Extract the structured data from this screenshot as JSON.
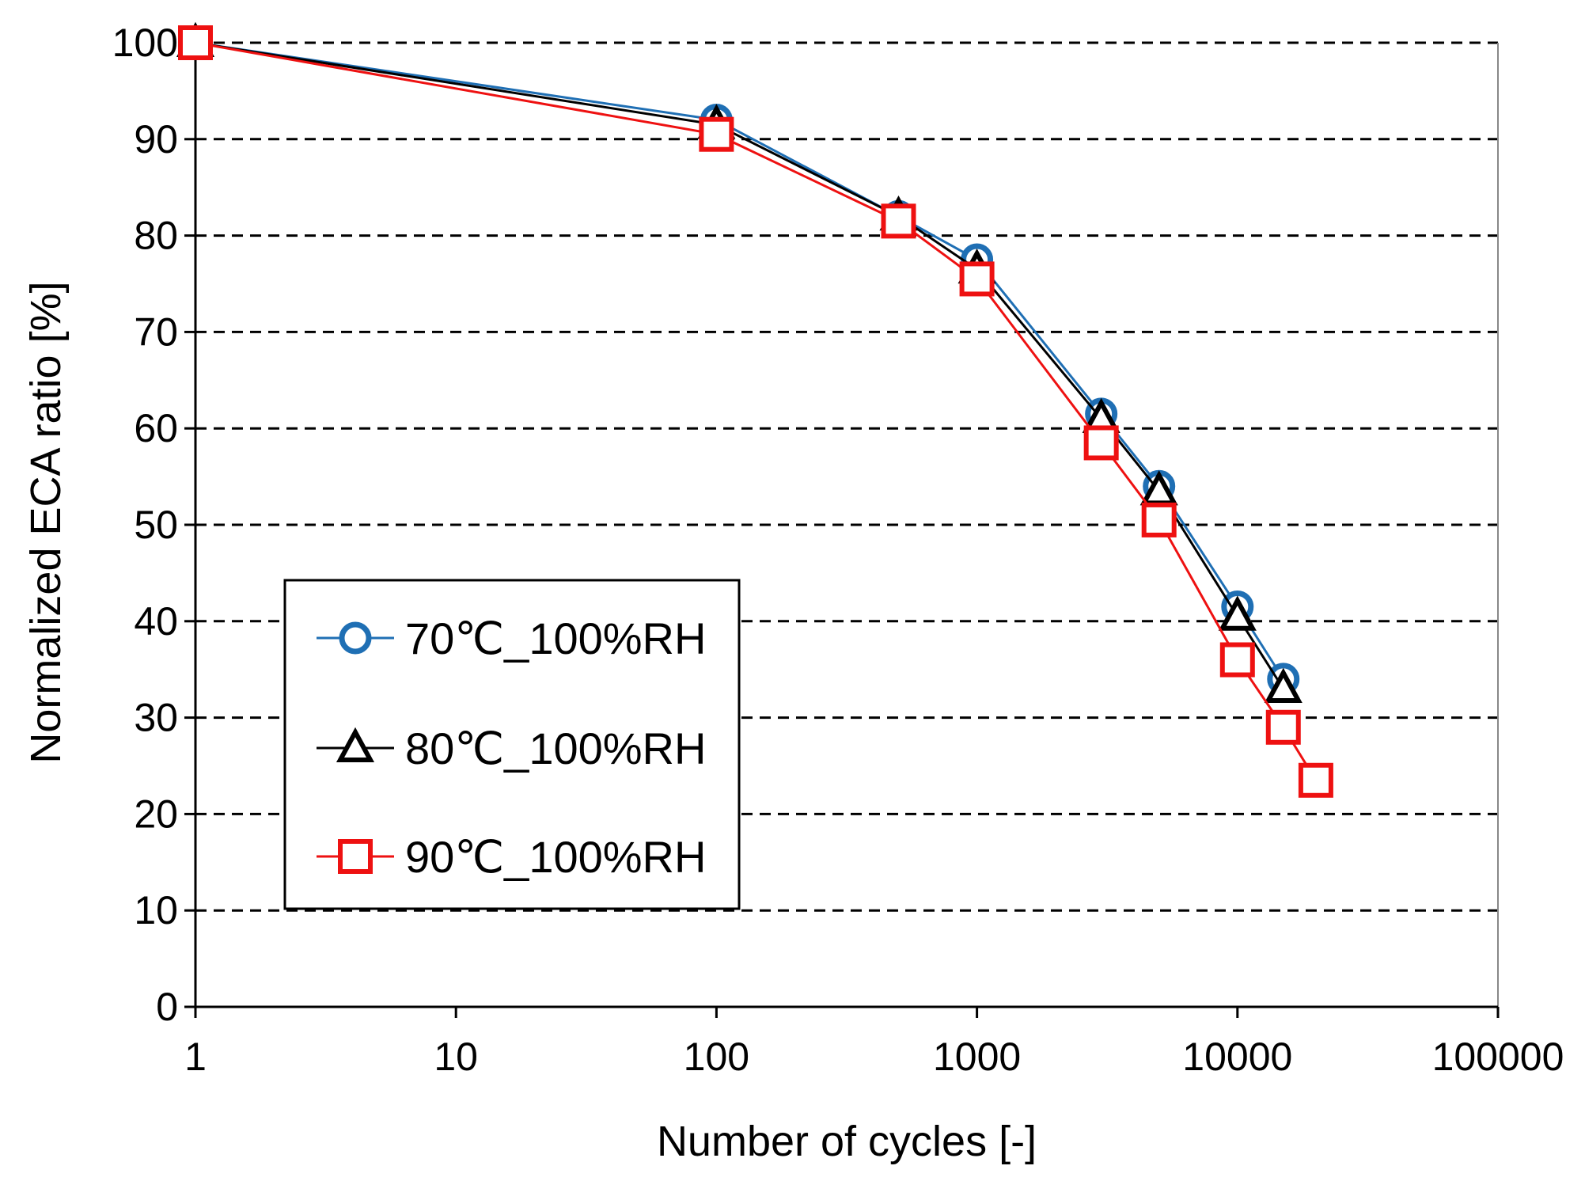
{
  "chart_data": {
    "type": "line",
    "title": "",
    "xlabel": "Number of cycles [-]",
    "ylabel": "Normalized ECA ratio [%]",
    "xscale": "log",
    "xlim": [
      1,
      100000
    ],
    "ylim": [
      0,
      100
    ],
    "x_ticks": [
      1,
      10,
      100,
      1000,
      10000,
      100000
    ],
    "x_tick_labels": [
      "1",
      "10",
      "100",
      "1000",
      "10000",
      "100000"
    ],
    "y_ticks": [
      0,
      10,
      20,
      30,
      40,
      50,
      60,
      70,
      80,
      90,
      100
    ],
    "y_tick_labels": [
      "0",
      "10",
      "20",
      "30",
      "40",
      "50",
      "60",
      "70",
      "80",
      "90",
      "100"
    ],
    "grid": "horizontal dashed",
    "legend_position": "lower-left",
    "series": [
      {
        "name": "70℃_100%RH",
        "color": "#1f6fb4",
        "marker": "circle",
        "x": [
          1,
          100,
          500,
          1000,
          3000,
          5000,
          10000,
          15000
        ],
        "y": [
          100,
          92,
          82,
          77.5,
          61.5,
          54,
          41.5,
          34
        ]
      },
      {
        "name": "80℃_100%RH",
        "color": "#000000",
        "marker": "triangle",
        "x": [
          1,
          100,
          500,
          1000,
          3000,
          5000,
          10000,
          15000
        ],
        "y": [
          100,
          91.5,
          82,
          76.5,
          61,
          53.5,
          40.5,
          33
        ]
      },
      {
        "name": "90℃_100%RH",
        "color": "#ee1111",
        "marker": "square",
        "x": [
          1,
          100,
          500,
          1000,
          3000,
          5000,
          10000,
          15000,
          20000
        ],
        "y": [
          100,
          90.5,
          81.5,
          75.5,
          58.5,
          50.5,
          36,
          29,
          23.5
        ]
      }
    ]
  }
}
